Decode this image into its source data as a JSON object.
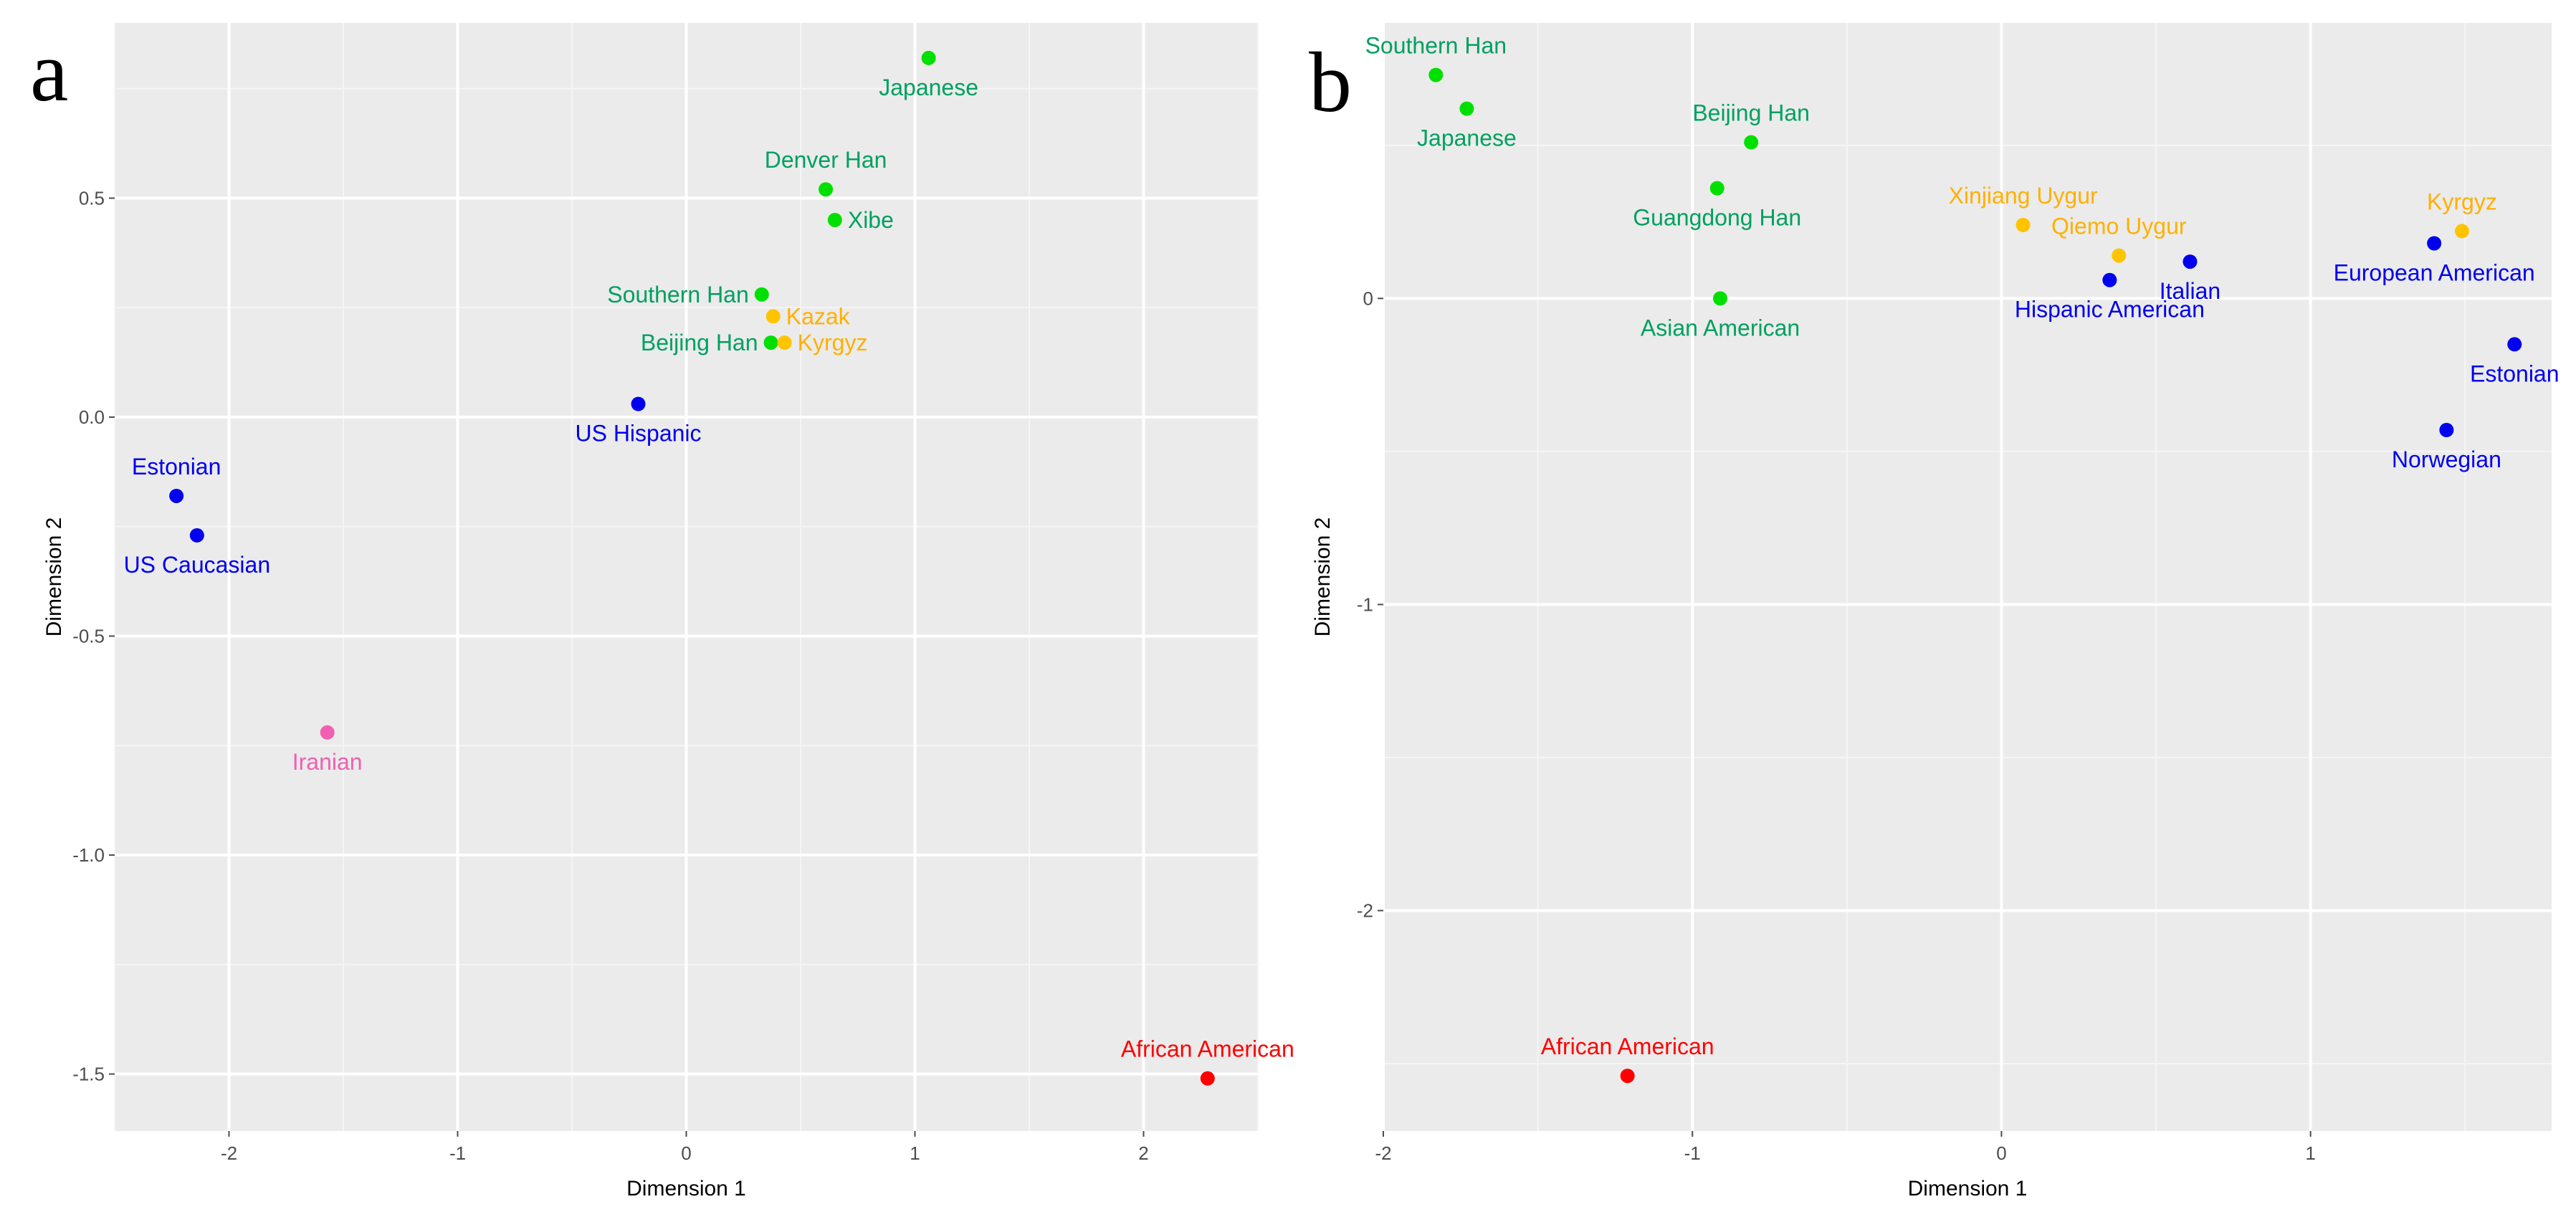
{
  "chart_data": [
    {
      "type": "scatter",
      "panel_label": "a",
      "xlabel": "Dimension 1",
      "ylabel": "Dimension 2",
      "xlim": [
        -2.5,
        2.5
      ],
      "ylim": [
        -1.63,
        0.9
      ],
      "x_ticks": [
        -2,
        -1,
        0,
        1,
        2
      ],
      "x_tick_labels": [
        "-2",
        "-1",
        "0",
        "1",
        "2"
      ],
      "y_ticks": [
        -1.5,
        -1.0,
        -0.5,
        0.0,
        0.5
      ],
      "y_tick_labels": [
        "-1.5",
        "-1.0",
        "-0.5",
        "0.0",
        "0.5"
      ],
      "grid": true,
      "points": [
        {
          "name": "Japanese",
          "x": 1.06,
          "y": 0.82,
          "color": "#00e000",
          "label_color": "#00a060",
          "label_pos": "below"
        },
        {
          "name": "Denver Han",
          "x": 0.61,
          "y": 0.52,
          "color": "#00e000",
          "label_color": "#00a060",
          "label_pos": "above"
        },
        {
          "name": "Xibe",
          "x": 0.65,
          "y": 0.45,
          "color": "#00e000",
          "label_color": "#00a060",
          "label_pos": "right"
        },
        {
          "name": "Southern Han",
          "x": 0.33,
          "y": 0.28,
          "color": "#00e000",
          "label_color": "#00a060",
          "label_pos": "left"
        },
        {
          "name": "Kazak",
          "x": 0.38,
          "y": 0.23,
          "color": "#ffc400",
          "label_color": "#ffb000",
          "label_pos": "right"
        },
        {
          "name": "Beijing Han",
          "x": 0.37,
          "y": 0.17,
          "color": "#00e000",
          "label_color": "#00a060",
          "label_pos": "left"
        },
        {
          "name": "Kyrgyz",
          "x": 0.43,
          "y": 0.17,
          "color": "#ffc400",
          "label_color": "#ffb000",
          "label_pos": "right"
        },
        {
          "name": "US Hispanic",
          "x": -0.21,
          "y": 0.03,
          "color": "#0000ee",
          "label_color": "#0000ee",
          "label_pos": "below"
        },
        {
          "name": "Estonian",
          "x": -2.23,
          "y": -0.18,
          "color": "#0000ee",
          "label_color": "#0000ee",
          "label_pos": "above"
        },
        {
          "name": "US Caucasian",
          "x": -2.14,
          "y": -0.27,
          "color": "#0000ee",
          "label_color": "#0000ee",
          "label_pos": "below"
        },
        {
          "name": "Iranian",
          "x": -1.57,
          "y": -0.72,
          "color": "#f060b0",
          "label_color": "#f060b0",
          "label_pos": "below"
        },
        {
          "name": "African American",
          "x": 2.28,
          "y": -1.51,
          "color": "#ff0000",
          "label_color": "#ff0000",
          "label_pos": "above"
        }
      ]
    },
    {
      "type": "scatter",
      "panel_label": "b",
      "xlabel": "Dimension 1",
      "ylabel": "Dimension 2",
      "xlim": [
        -2.0,
        1.78
      ],
      "ylim": [
        -2.72,
        0.9
      ],
      "x_ticks": [
        -2,
        -1,
        0,
        1
      ],
      "x_tick_labels": [
        "-2",
        "-1",
        "0",
        "1"
      ],
      "y_ticks": [
        -2,
        -1,
        0
      ],
      "y_tick_labels": [
        "-2",
        "-1",
        "0"
      ],
      "grid": true,
      "points": [
        {
          "name": "Southern Han",
          "x": -1.83,
          "y": 0.73,
          "color": "#00e000",
          "label_color": "#00a060",
          "label_pos": "above"
        },
        {
          "name": "Japanese",
          "x": -1.73,
          "y": 0.62,
          "color": "#00e000",
          "label_color": "#00a060",
          "label_pos": "below"
        },
        {
          "name": "Beijing Han",
          "x": -0.81,
          "y": 0.51,
          "color": "#00e000",
          "label_color": "#00a060",
          "label_pos": "above"
        },
        {
          "name": "Guangdong Han",
          "x": -0.92,
          "y": 0.36,
          "color": "#00e000",
          "label_color": "#00a060",
          "label_pos": "below"
        },
        {
          "name": "Xinjiang Uygur",
          "x": 0.07,
          "y": 0.24,
          "color": "#ffc400",
          "label_color": "#ffb000",
          "label_pos": "above"
        },
        {
          "name": "Qiemo Uygur",
          "x": 0.38,
          "y": 0.14,
          "color": "#ffc400",
          "label_color": "#ffb000",
          "label_pos": "above"
        },
        {
          "name": "Italian",
          "x": 0.61,
          "y": 0.12,
          "color": "#0000ee",
          "label_color": "#0000ee",
          "label_pos": "below"
        },
        {
          "name": "Hispanic American",
          "x": 0.35,
          "y": 0.06,
          "color": "#0000ee",
          "label_color": "#0000ee",
          "label_pos": "below"
        },
        {
          "name": "Kyrgyz",
          "x": 1.49,
          "y": 0.22,
          "color": "#ffc400",
          "label_color": "#ffb000",
          "label_pos": "above"
        },
        {
          "name": "European American",
          "x": 1.4,
          "y": 0.18,
          "color": "#0000ee",
          "label_color": "#0000ee",
          "label_pos": "below"
        },
        {
          "name": "Asian American",
          "x": -0.91,
          "y": 0.0,
          "color": "#00e000",
          "label_color": "#00a060",
          "label_pos": "below"
        },
        {
          "name": "Estonian",
          "x": 1.66,
          "y": -0.15,
          "color": "#0000ee",
          "label_color": "#0000ee",
          "label_pos": "below"
        },
        {
          "name": "Norwegian",
          "x": 1.44,
          "y": -0.43,
          "color": "#0000ee",
          "label_color": "#0000ee",
          "label_pos": "below"
        },
        {
          "name": "African American",
          "x": -1.21,
          "y": -2.54,
          "color": "#ff0000",
          "label_color": "#ff0000",
          "label_pos": "above"
        }
      ]
    }
  ]
}
